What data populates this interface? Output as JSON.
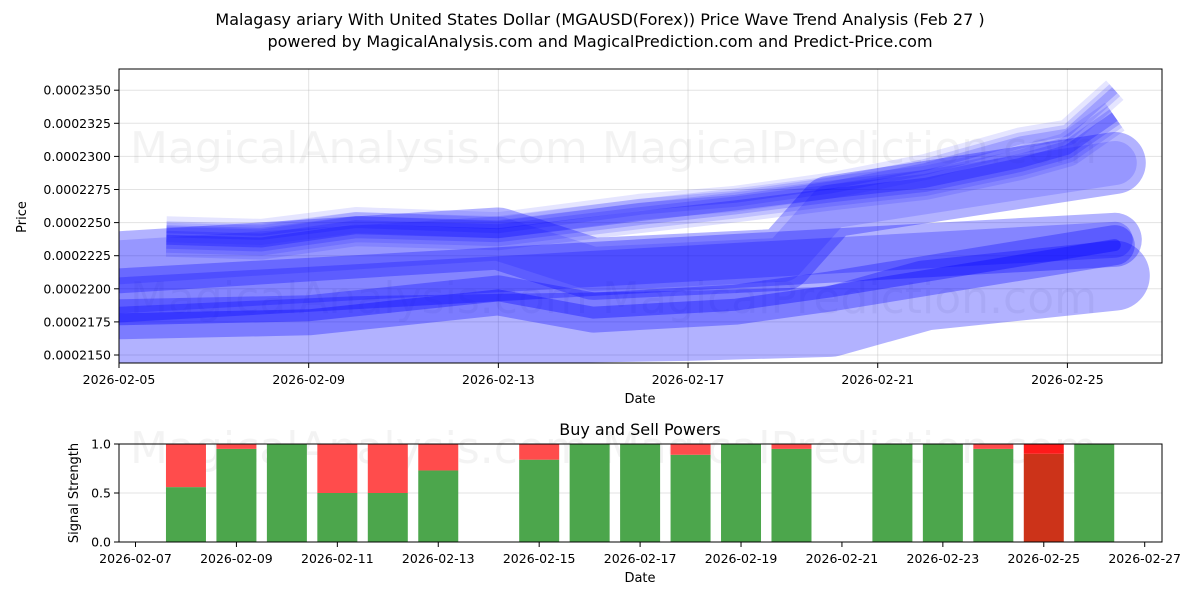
{
  "header": {
    "title": "Malagasy ariary With United States Dollar (MGAUSD(Forex)) Price Wave Trend Analysis (Feb 27 )",
    "subtitle": "powered by MagicalAnalysis.com and MagicalPrediction.com and Predict-Price.com"
  },
  "watermarks": {
    "a": "MagicalAnalysis.com",
    "b": "MagicalPrediction.com"
  },
  "colors": {
    "wave": "#0000ff",
    "buy": "#4ca64c",
    "sell": "#ff4c4c",
    "sell_strong": "#ff1a1a",
    "buy_dark_red": "#cc3319"
  },
  "chart_data": [
    {
      "type": "area",
      "title": "Price Wave Trend Analysis",
      "xlabel": "Date",
      "ylabel": "Price",
      "x_ticks": [
        "2026-02-05",
        "2026-02-09",
        "2026-02-13",
        "2026-02-17",
        "2026-02-21",
        "2026-02-25"
      ],
      "y_ticks": [
        "0.0002150",
        "0.0002175",
        "0.0002200",
        "0.0002225",
        "0.0002250",
        "0.0002275",
        "0.0002300",
        "0.0002325",
        "0.0002350"
      ],
      "ylim": [
        0.0002143,
        0.0002366
      ],
      "grid": true,
      "series": [
        {
          "name": "wave-upper-main",
          "x": [
            "2026-02-06",
            "2026-02-08",
            "2026-02-10",
            "2026-02-13",
            "2026-02-16",
            "2026-02-18",
            "2026-02-20",
            "2026-02-22",
            "2026-02-24",
            "2026-02-25",
            "2026-02-26"
          ],
          "values": [
            0.0002237,
            0.0002235,
            0.0002245,
            0.0002242,
            0.0002255,
            0.0002263,
            0.0002272,
            0.000228,
            0.0002295,
            0.0002305,
            0.000233
          ]
        },
        {
          "name": "wave-upper-high",
          "x": [
            "2026-02-06",
            "2026-02-08",
            "2026-02-10",
            "2026-02-13",
            "2026-02-16",
            "2026-02-18",
            "2026-02-20",
            "2026-02-22",
            "2026-02-24",
            "2026-02-25",
            "2026-02-26"
          ],
          "values": [
            0.0002245,
            0.0002243,
            0.0002252,
            0.0002248,
            0.0002262,
            0.0002268,
            0.0002278,
            0.0002292,
            0.0002312,
            0.0002318,
            0.000235
          ]
        },
        {
          "name": "wave-band-1",
          "x": [
            "2026-02-05",
            "2026-02-13",
            "2026-02-15",
            "2026-02-19",
            "2026-02-20",
            "2026-02-26"
          ],
          "values": [
            0.000222,
            0.0002238,
            0.0002215,
            0.0002222,
            0.0002262,
            0.0002295
          ]
        },
        {
          "name": "wave-band-2",
          "x": [
            "2026-02-05",
            "2026-02-10",
            "2026-02-15",
            "2026-02-20",
            "2026-02-26"
          ],
          "values": [
            0.0002195,
            0.0002205,
            0.0002215,
            0.0002225,
            0.0002237
          ]
        },
        {
          "name": "wave-band-3",
          "x": [
            "2026-02-05",
            "2026-02-09",
            "2026-02-13",
            "2026-02-15",
            "2026-02-18",
            "2026-02-20",
            "2026-02-26"
          ],
          "values": [
            0.0002177,
            0.000218,
            0.0002195,
            0.0002182,
            0.0002188,
            0.0002198,
            0.0002233
          ]
        },
        {
          "name": "wave-band-4",
          "x": [
            "2026-02-05",
            "2026-02-10",
            "2026-02-17",
            "2026-02-20",
            "2026-02-22",
            "2026-02-26"
          ],
          "values": [
            0.000216,
            0.0002168,
            0.0002172,
            0.0002175,
            0.0002195,
            0.000221
          ]
        }
      ]
    },
    {
      "type": "bar",
      "title": "Buy and Sell Powers",
      "xlabel": "Date",
      "ylabel": "Signal Strength",
      "ylim": [
        0,
        1
      ],
      "y_ticks": [
        "0.0",
        "0.5",
        "1.0"
      ],
      "x_ticks": [
        "2026-02-07",
        "2026-02-09",
        "2026-02-11",
        "2026-02-13",
        "2026-02-15",
        "2026-02-17",
        "2026-02-19",
        "2026-02-21",
        "2026-02-23",
        "2026-02-25",
        "2026-02-27"
      ],
      "grid": true,
      "categories": [
        "2026-02-08",
        "2026-02-09",
        "2026-02-10",
        "2026-02-11",
        "2026-02-12",
        "2026-02-13",
        "2026-02-15",
        "2026-02-16",
        "2026-02-17",
        "2026-02-18",
        "2026-02-19",
        "2026-02-20",
        "2026-02-22",
        "2026-02-23",
        "2026-02-24",
        "2026-02-25",
        "2026-02-26"
      ],
      "series": [
        {
          "name": "Buy",
          "values": [
            0.56,
            0.95,
            1.0,
            0.5,
            0.5,
            0.73,
            0.84,
            1.0,
            1.0,
            0.89,
            1.0,
            0.95,
            1.0,
            1.0,
            0.95,
            0.9,
            1.0
          ]
        },
        {
          "name": "Sell",
          "values": [
            0.44,
            0.05,
            0.0,
            0.5,
            0.5,
            0.27,
            0.16,
            0.0,
            0.0,
            0.11,
            0.0,
            0.05,
            0.0,
            0.0,
            0.05,
            0.1,
            0.0
          ]
        }
      ]
    }
  ]
}
